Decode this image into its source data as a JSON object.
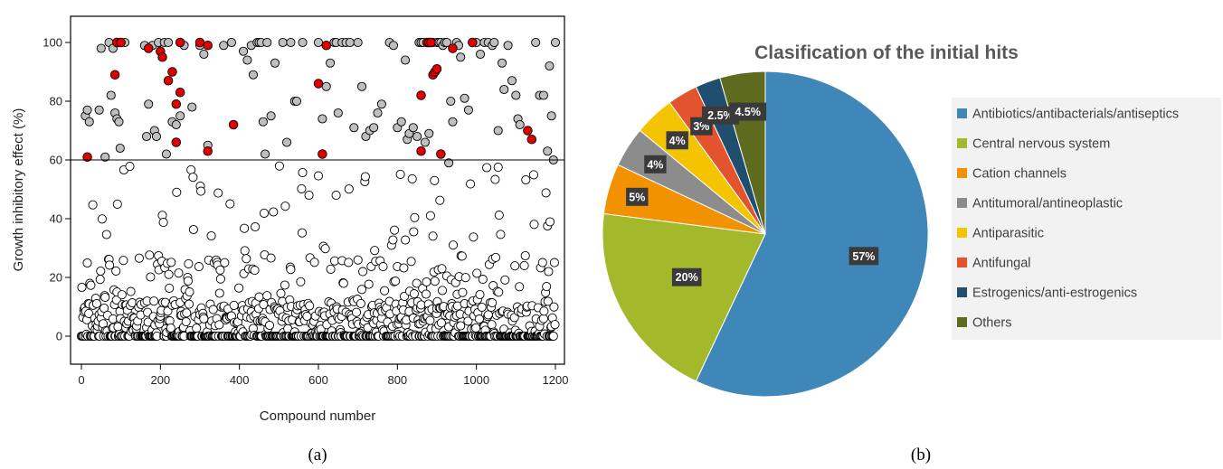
{
  "chart_data": [
    {
      "type": "scatter",
      "xlabel": "Compound number",
      "ylabel": "Growth inhibitory effect (%)",
      "xlim": [
        0,
        1200
      ],
      "ylim": [
        0,
        100
      ],
      "xticks": [
        0,
        200,
        400,
        600,
        800,
        1000,
        1200
      ],
      "yticks": [
        0,
        20,
        40,
        60,
        80,
        100
      ],
      "threshold": 60,
      "panel_label": "(a)",
      "colors": {
        "below": "#ffffff",
        "above": "#bfbfbf",
        "highlight": "#e00000"
      },
      "highlight_points": [
        [
          15,
          61
        ],
        [
          85,
          89
        ],
        [
          90,
          100
        ],
        [
          100,
          100
        ],
        [
          170,
          98
        ],
        [
          200,
          97
        ],
        [
          205,
          95
        ],
        [
          220,
          87
        ],
        [
          230,
          90
        ],
        [
          240,
          79
        ],
        [
          240,
          66
        ],
        [
          250,
          83
        ],
        [
          250,
          100
        ],
        [
          300,
          100
        ],
        [
          320,
          99
        ],
        [
          320,
          63
        ],
        [
          385,
          72
        ],
        [
          600,
          86
        ],
        [
          610,
          62
        ],
        [
          620,
          99
        ],
        [
          860,
          82
        ],
        [
          860,
          63
        ],
        [
          875,
          100
        ],
        [
          880,
          100
        ],
        [
          885,
          100
        ],
        [
          890,
          89
        ],
        [
          895,
          90
        ],
        [
          900,
          91
        ],
        [
          910,
          62
        ],
        [
          940,
          98
        ],
        [
          990,
          100
        ],
        [
          1130,
          70
        ],
        [
          1140,
          67
        ]
      ],
      "high_points": [
        [
          10,
          75
        ],
        [
          15,
          77
        ],
        [
          20,
          73
        ],
        [
          45,
          77
        ],
        [
          50,
          98
        ],
        [
          60,
          61
        ],
        [
          70,
          100
        ],
        [
          75,
          82
        ],
        [
          80,
          98
        ],
        [
          85,
          76
        ],
        [
          90,
          74
        ],
        [
          95,
          73
        ],
        [
          98,
          64
        ],
        [
          110,
          100
        ],
        [
          160,
          99
        ],
        [
          165,
          68
        ],
        [
          170,
          79
        ],
        [
          180,
          99
        ],
        [
          185,
          70
        ],
        [
          190,
          68
        ],
        [
          195,
          100
        ],
        [
          210,
          100
        ],
        [
          215,
          62
        ],
        [
          220,
          100
        ],
        [
          230,
          73
        ],
        [
          240,
          72
        ],
        [
          250,
          75
        ],
        [
          260,
          99
        ],
        [
          280,
          78
        ],
        [
          300,
          99
        ],
        [
          310,
          96
        ],
        [
          320,
          65
        ],
        [
          360,
          99
        ],
        [
          380,
          100
        ],
        [
          410,
          97
        ],
        [
          420,
          94
        ],
        [
          430,
          99
        ],
        [
          435,
          89
        ],
        [
          445,
          100
        ],
        [
          450,
          100
        ],
        [
          455,
          100
        ],
        [
          460,
          73
        ],
        [
          465,
          62
        ],
        [
          470,
          100
        ],
        [
          480,
          75
        ],
        [
          490,
          93
        ],
        [
          510,
          100
        ],
        [
          520,
          66
        ],
        [
          530,
          100
        ],
        [
          540,
          80
        ],
        [
          545,
          80
        ],
        [
          560,
          100
        ],
        [
          600,
          100
        ],
        [
          610,
          74
        ],
        [
          620,
          85
        ],
        [
          630,
          93
        ],
        [
          640,
          100
        ],
        [
          645,
          100
        ],
        [
          650,
          76
        ],
        [
          660,
          100
        ],
        [
          670,
          100
        ],
        [
          680,
          100
        ],
        [
          690,
          71
        ],
        [
          700,
          100
        ],
        [
          710,
          85
        ],
        [
          720,
          68
        ],
        [
          730,
          70
        ],
        [
          740,
          71
        ],
        [
          750,
          76
        ],
        [
          760,
          79
        ],
        [
          780,
          100
        ],
        [
          790,
          99
        ],
        [
          800,
          71
        ],
        [
          810,
          73
        ],
        [
          820,
          94
        ],
        [
          825,
          67
        ],
        [
          830,
          69
        ],
        [
          840,
          71
        ],
        [
          850,
          68
        ],
        [
          855,
          100
        ],
        [
          860,
          100
        ],
        [
          865,
          100
        ],
        [
          870,
          66
        ],
        [
          880,
          69
        ],
        [
          890,
          100
        ],
        [
          900,
          100
        ],
        [
          905,
          100
        ],
        [
          910,
          100
        ],
        [
          915,
          99
        ],
        [
          920,
          100
        ],
        [
          925,
          100
        ],
        [
          930,
          59
        ],
        [
          935,
          80
        ],
        [
          940,
          73
        ],
        [
          950,
          100
        ],
        [
          955,
          99
        ],
        [
          960,
          95
        ],
        [
          970,
          81
        ],
        [
          980,
          77
        ],
        [
          1000,
          100
        ],
        [
          1010,
          96
        ],
        [
          1020,
          100
        ],
        [
          1030,
          100
        ],
        [
          1040,
          99
        ],
        [
          1045,
          100
        ],
        [
          1055,
          70
        ],
        [
          1065,
          93
        ],
        [
          1070,
          84
        ],
        [
          1080,
          99
        ],
        [
          1090,
          87
        ],
        [
          1100,
          82
        ],
        [
          1105,
          74
        ],
        [
          1110,
          72
        ],
        [
          1150,
          100
        ],
        [
          1160,
          82
        ],
        [
          1170,
          82
        ],
        [
          1180,
          63
        ],
        [
          1185,
          92
        ],
        [
          1190,
          75
        ],
        [
          1200,
          100
        ],
        [
          1195,
          60
        ]
      ]
    },
    {
      "type": "pie",
      "title": "Clasification of the initial hits",
      "panel_label": "(b)",
      "slices": [
        {
          "name": "Antibiotics/antibacterials/antiseptics",
          "value": 57,
          "label": "57%",
          "color": "#3f87b8"
        },
        {
          "name": "Central nervous system",
          "value": 20,
          "label": "20%",
          "color": "#a4b82b"
        },
        {
          "name": "Cation channels",
          "value": 5,
          "label": "5%",
          "color": "#f39200"
        },
        {
          "name": "Antitumoral/antineoplastic",
          "value": 4,
          "label": "4%",
          "color": "#8c8c8c"
        },
        {
          "name": "Antiparasitic",
          "value": 4,
          "label": "4%",
          "color": "#f5c400"
        },
        {
          "name": "Antifungal",
          "value": 3,
          "label": "3%",
          "color": "#e2532e"
        },
        {
          "name": "Estrogenics/anti-estrogenics",
          "value": 2.5,
          "label": "2.5%",
          "color": "#1f4e6e"
        },
        {
          "name": "Others",
          "value": 4.5,
          "label": "4.5%",
          "color": "#5e6b1e"
        }
      ]
    }
  ]
}
